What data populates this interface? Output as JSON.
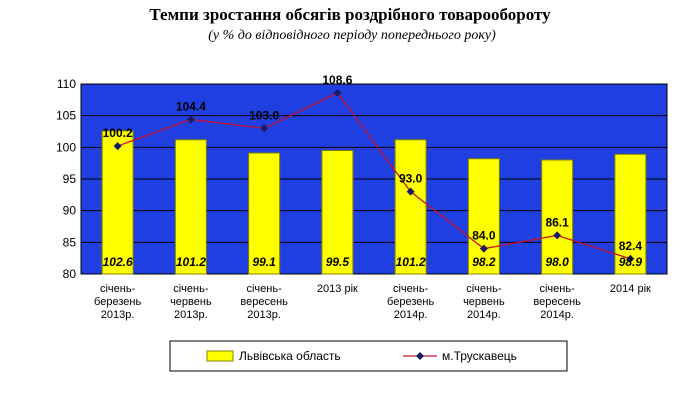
{
  "chart_data": {
    "type": "bar",
    "title": "Темпи зростання обсягів роздрібного товарообороту",
    "subtitle": "(у %  до відповідного періоду попереднього року)",
    "categories": [
      [
        "січень-",
        "березень",
        "2013р."
      ],
      [
        "січень-",
        "червень",
        "2013р."
      ],
      [
        "січень-",
        "вересень",
        "2013р."
      ],
      [
        "2013 рік"
      ],
      [
        "січень-",
        "березень",
        "2014р."
      ],
      [
        "січень-",
        "червень",
        "2014р."
      ],
      [
        "січень-",
        "вересень",
        "2014р."
      ],
      [
        "2014 рік"
      ]
    ],
    "series": [
      {
        "name": "Львівська область",
        "type": "bar",
        "values": [
          102.6,
          101.2,
          99.1,
          99.5,
          101.2,
          98.2,
          98.0,
          98.9
        ],
        "labels": [
          "102.6",
          "101.2",
          "99.1",
          "99.5",
          "101.2",
          "98.2",
          "98.0",
          "98.9"
        ]
      },
      {
        "name": "м.Трускавець",
        "type": "line",
        "values": [
          100.2,
          104.4,
          103.0,
          108.6,
          93.0,
          84.0,
          86.1,
          82.4
        ],
        "labels": [
          "100.2",
          "104.4",
          "103.0",
          "108.6",
          "93.0",
          "84.0",
          "86.1",
          "82.4"
        ]
      }
    ],
    "ylim": [
      80,
      110
    ],
    "yticks": [
      "80",
      "85",
      "90",
      "95",
      "100",
      "105",
      "110"
    ],
    "grid": true,
    "legend_position": "bottom",
    "colors": {
      "plot_bg": "#1F3FE0",
      "bar": "#FFFF00",
      "bar_edge": "#808000",
      "line": "#C8102E",
      "marker": "#1A1A66",
      "grid": "#000000"
    }
  }
}
